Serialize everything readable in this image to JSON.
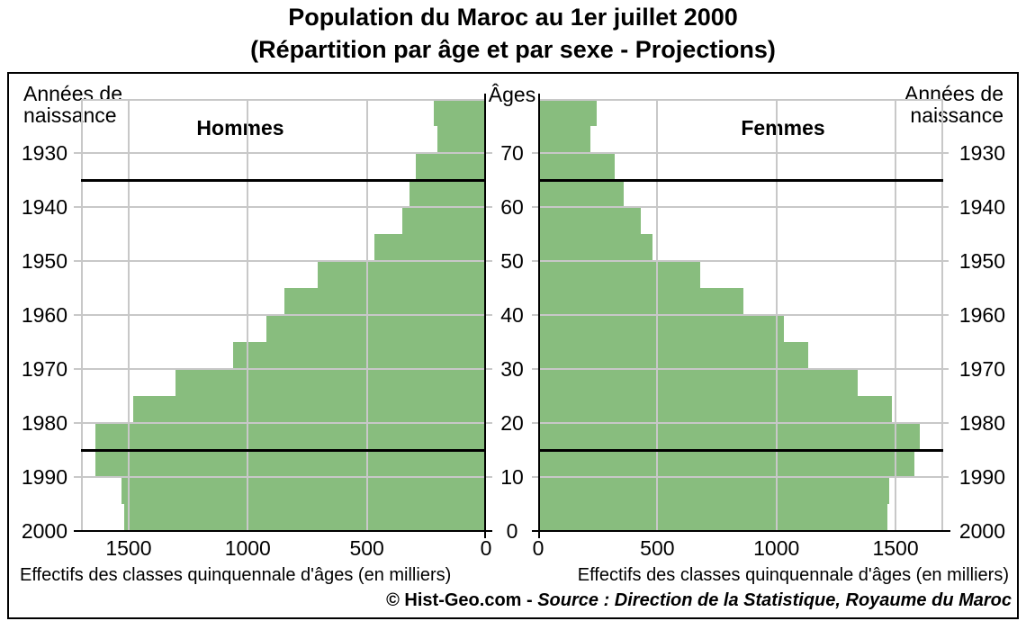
{
  "title": {
    "line1": "Population du Maroc au 1er juillet 2000",
    "line2": "(Répartition par âge et par sexe - Projections)"
  },
  "header": {
    "birth_years_label_line1": "Années de",
    "birth_years_label_line2": "naissance",
    "ages_label": "Âges",
    "male_label": "Hommes",
    "female_label": "Femmes"
  },
  "axes": {
    "x_caption": "Effectifs des classes quinquennale d'âges (en milliers)",
    "x_ticks": [
      1500,
      1000,
      500,
      0
    ],
    "x_gridline_values": [
      1500,
      1000,
      500
    ],
    "x_max": 1700,
    "age_tick_labels": [
      70,
      60,
      50,
      40,
      30,
      20,
      10,
      0
    ],
    "year_labels": [
      1930,
      1940,
      1950,
      1960,
      1970,
      1980,
      1990,
      2000
    ],
    "reference_ages": [
      65,
      15
    ]
  },
  "footer": {
    "copyright": "© Hist-Geo.com - ",
    "source": "Source : Direction de la Statistique, Royaume du Maroc"
  },
  "colors": {
    "bar_green": "#88bd7e",
    "gridline": "#c8c8c8",
    "axis": "#000000"
  },
  "chart_data": {
    "type": "bar",
    "variant": "population-pyramid",
    "title": "Population du Maroc au 1er juillet 2000 (Répartition par âge et par sexe - Projections)",
    "unit": "milliers",
    "xlabel": "Effectifs des classes quinquennale d'âges (en milliers)",
    "xlim": [
      0,
      1700
    ],
    "age_band_years": 5,
    "age_groups": [
      "0-4",
      "5-9",
      "10-14",
      "15-19",
      "20-24",
      "25-29",
      "30-34",
      "35-39",
      "40-44",
      "45-49",
      "50-54",
      "55-59",
      "60-64",
      "65-69",
      "70-74",
      "75-79"
    ],
    "birth_year_axis": [
      1930,
      1940,
      1950,
      1960,
      1970,
      1980,
      1990,
      2000
    ],
    "series": [
      {
        "name": "Hommes",
        "side": "left",
        "values": [
          1520,
          1530,
          1640,
          1640,
          1480,
          1305,
          1060,
          920,
          845,
          705,
          470,
          350,
          320,
          295,
          205,
          220
        ]
      },
      {
        "name": "Femmes",
        "side": "right",
        "values": [
          1465,
          1475,
          1580,
          1600,
          1485,
          1340,
          1135,
          1030,
          860,
          680,
          480,
          430,
          360,
          320,
          220,
          245
        ]
      }
    ],
    "reference_lines_at_ages": [
      65,
      15
    ],
    "grid": true,
    "legend_position": "none"
  }
}
